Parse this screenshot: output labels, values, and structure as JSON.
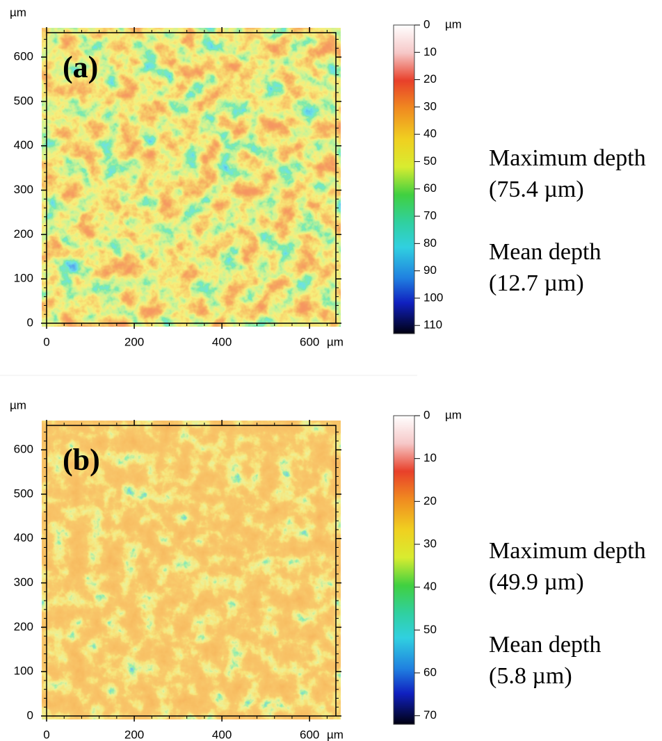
{
  "chart_data": [
    {
      "type": "heatmap",
      "panel_label": "(a)",
      "x_unit": "µm",
      "y_unit": "µm",
      "xlim": [
        0,
        660
      ],
      "ylim": [
        0,
        655
      ],
      "xticks": [
        0,
        200,
        400,
        600
      ],
      "yticks": [
        0,
        100,
        200,
        300,
        400,
        500,
        600
      ],
      "colorbar": {
        "lim": [
          0,
          113
        ],
        "ticks": [
          0,
          10,
          20,
          30,
          40,
          50,
          60,
          70,
          80,
          90,
          100,
          110
        ],
        "unit": "µm"
      },
      "annotations": [
        "Maximum depth",
        "(75.4 µm)",
        "Mean depth",
        "(12.7 µm)"
      ]
    },
    {
      "type": "heatmap",
      "panel_label": "(b)",
      "x_unit": "µm",
      "y_unit": "µm",
      "xlim": [
        0,
        660
      ],
      "ylim": [
        0,
        655
      ],
      "xticks": [
        0,
        200,
        400,
        600
      ],
      "yticks": [
        0,
        100,
        200,
        300,
        400,
        500,
        600
      ],
      "colorbar": {
        "lim": [
          0,
          72
        ],
        "ticks": [
          0,
          10,
          20,
          30,
          40,
          50,
          60,
          70
        ],
        "unit": "µm"
      },
      "annotations": [
        "Maximum depth",
        "(49.9 µm)",
        "Mean depth",
        "(5.8 µm)"
      ]
    }
  ]
}
